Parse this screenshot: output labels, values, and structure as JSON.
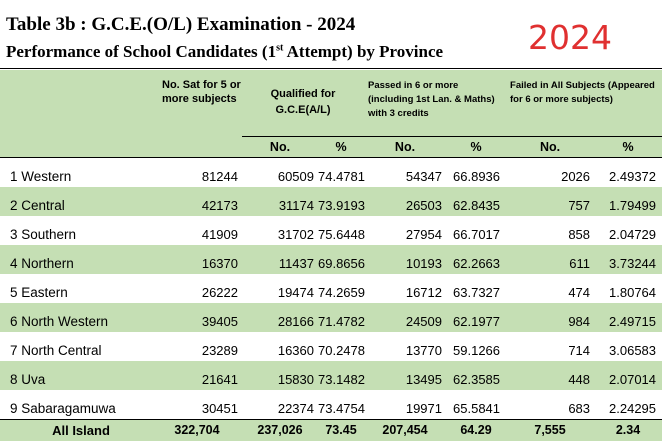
{
  "title": "Table 3b : G.C.E.(O/L) Examination - 2024",
  "subtitle_pre": "Performance of School Candidates (1",
  "subtitle_sup": "st",
  "subtitle_post": " Attempt) by Province",
  "year_badge": "2024",
  "header": {
    "no_sat": "No. Sat for 5 or more subjects",
    "qualified": "Qualified for G.C.E(A/L)",
    "passed": "Passed in 6 or more (including 1st Lan. & Maths) with 3 credits",
    "failed": "Failed in All Subjects (Appeared for 6 or more subjects)",
    "no": "No.",
    "pct": "%"
  },
  "rows": [
    {
      "province": "1 Western",
      "sat": "81244",
      "q_no": "60509",
      "q_pct": "74.4781",
      "p_no": "54347",
      "p_pct": "66.8936",
      "f_no": "2026",
      "f_pct": "2.49372"
    },
    {
      "province": "2 Central",
      "sat": "42173",
      "q_no": "31174",
      "q_pct": "73.9193",
      "p_no": "26503",
      "p_pct": "62.8435",
      "f_no": "757",
      "f_pct": "1.79499"
    },
    {
      "province": "3 Southern",
      "sat": "41909",
      "q_no": "31702",
      "q_pct": "75.6448",
      "p_no": "27954",
      "p_pct": "66.7017",
      "f_no": "858",
      "f_pct": "2.04729"
    },
    {
      "province": "4 Northern",
      "sat": "16370",
      "q_no": "11437",
      "q_pct": "69.8656",
      "p_no": "10193",
      "p_pct": "62.2663",
      "f_no": "611",
      "f_pct": "3.73244"
    },
    {
      "province": "5 Eastern",
      "sat": "26222",
      "q_no": "19474",
      "q_pct": "74.2659",
      "p_no": "16712",
      "p_pct": "63.7327",
      "f_no": "474",
      "f_pct": "1.80764"
    },
    {
      "province": "6 North Western",
      "sat": "39405",
      "q_no": "28166",
      "q_pct": "71.4782",
      "p_no": "24509",
      "p_pct": "62.1977",
      "f_no": "984",
      "f_pct": "2.49715"
    },
    {
      "province": "7 North Central",
      "sat": "23289",
      "q_no": "16360",
      "q_pct": "70.2478",
      "p_no": "13770",
      "p_pct": "59.1266",
      "f_no": "714",
      "f_pct": "3.06583"
    },
    {
      "province": "8 Uva",
      "sat": "21641",
      "q_no": "15830",
      "q_pct": "73.1482",
      "p_no": "13495",
      "p_pct": "62.3585",
      "f_no": "448",
      "f_pct": "2.07014"
    },
    {
      "province": "9 Sabaragamuwa",
      "sat": "30451",
      "q_no": "22374",
      "q_pct": "73.4754",
      "p_no": "19971",
      "p_pct": "65.5841",
      "f_no": "683",
      "f_pct": "2.24295"
    }
  ],
  "total": {
    "province": "All Island",
    "sat": "322,704",
    "q_no": "237,026",
    "q_pct": "73.45",
    "p_no": "207,454",
    "p_pct": "64.29",
    "f_no": "7,555",
    "f_pct": "2.34"
  }
}
